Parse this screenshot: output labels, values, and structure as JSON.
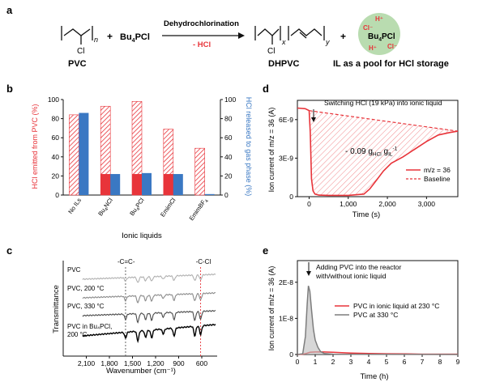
{
  "scheme": {
    "panel_label": "a",
    "pvc_cl": "Cl",
    "pvc_n": "n",
    "plus1": "+",
    "reagent_main": "Bu",
    "reagent_sub": "4",
    "reagent_end": "PCl",
    "arrow_top": "Dehydrochlorination",
    "arrow_bottom": "- HCl",
    "dhpvc_cl": "Cl",
    "dhpvc_x": "x",
    "dhpvc_y": "y",
    "plus2": "+",
    "pool_h_top": "H⁺",
    "pool_cl_left": "Cl⁻",
    "pool_main": "Bu",
    "pool_sub": "4",
    "pool_end": "PCl",
    "pool_h_bottom": "H⁺",
    "pool_cl_right": "Cl⁻",
    "pool_color": "#b9dcb0",
    "label_pvc": "PVC",
    "label_dhpvc": "DHPVC",
    "label_pool": "IL as a pool for HCl storage"
  },
  "chart_data": [
    {
      "panel": "b",
      "type": "bar",
      "xlabel": "Ionic liquids",
      "ylabel_left": "HCl emitted from PVC (%)",
      "ylabel_right": "HCl released to gas phase (%)",
      "ylim": [
        0,
        100
      ],
      "yticks": [
        0,
        20,
        40,
        60,
        80,
        100
      ],
      "categories": [
        "No ILs",
        "Bu4NCl",
        "Bu4PCl",
        "EmimCl",
        "EmimBF4"
      ],
      "category_labels": [
        {
          "main": "No ILs",
          "sub": "",
          "end": ""
        },
        {
          "main": "Bu",
          "sub": "4",
          "end": "NCl"
        },
        {
          "main": "Bu",
          "sub": "4",
          "end": "PCl"
        },
        {
          "main": "EmimCl",
          "sub": "",
          "end": ""
        },
        {
          "main": "EmimBF",
          "sub": "4",
          "end": ""
        }
      ],
      "series": [
        {
          "values": [
            84,
            93,
            98,
            69,
            49
          ],
          "color": "#e8343a",
          "pattern": "hatched"
        },
        {
          "values": [
            0,
            22,
            22,
            22,
            0
          ],
          "color": "#e8343a",
          "pattern": "solid"
        },
        {
          "values": [
            86,
            22,
            23,
            22,
            1
          ],
          "color": "#3a78c3",
          "pattern": "solid"
        }
      ]
    },
    {
      "panel": "c",
      "type": "line",
      "xlabel": "Wavenumber (cm⁻¹)",
      "ylabel": "Transmittance",
      "xlim": [
        2400,
        400
      ],
      "xticks": [
        2100,
        1800,
        1500,
        1200,
        900,
        600
      ],
      "xtick_labels": [
        "2,100",
        "1,800",
        "1,500",
        "1,200",
        "900",
        "600"
      ],
      "markers": [
        {
          "label": "-C=C-",
          "x": 1590,
          "color": "#555555"
        },
        {
          "label": "-C-Cl",
          "x": 615,
          "color": "#e8343a"
        }
      ],
      "series": [
        {
          "label": "PVC",
          "color": "#b0b0b0"
        },
        {
          "label": "PVC, 200 °C",
          "color": "#8a8a8a"
        },
        {
          "label": "PVC, 330 °C",
          "color": "#4a4a4a"
        },
        {
          "label": "PVC in Bu₄PCl,",
          "label2": "200 °C",
          "color": "#000000"
        }
      ]
    },
    {
      "panel": "d",
      "type": "line",
      "xlabel": "Time (s)",
      "ylabel": "Ion current of m/z = 36 (A)",
      "xlim": [
        -300,
        3800
      ],
      "xticks": [
        0,
        1000,
        2000,
        3000
      ],
      "xtick_labels": [
        "0",
        "1,000",
        "2,000",
        "3,000"
      ],
      "ylim": [
        0,
        7.5e-09
      ],
      "yticks": [
        0,
        3e-09,
        6e-09
      ],
      "ytick_labels": [
        "0",
        "3E-9",
        "6E-9"
      ],
      "annotation": "Switching HCl (19 kPa) into ionic liquid",
      "area_label_main": "- 0.09 g",
      "area_label_sub1": "HCl",
      "area_label_mid": " g",
      "area_label_sub2": "IL",
      "area_label_sup": "-1",
      "series": [
        {
          "name": "m/z = 36",
          "color": "#e8343a",
          "style": "solid",
          "x": [
            -300,
            -100,
            0,
            30,
            60,
            100,
            150,
            250,
            500,
            1000,
            1400,
            1550,
            1700,
            1900,
            2100,
            2400,
            2700,
            3000,
            3300,
            3600,
            3800
          ],
          "y": [
            6.9e-09,
            6.85e-09,
            6.7e-09,
            5e-09,
            1.4e-09,
            4.5e-10,
            2e-10,
            1.2e-10,
            1e-10,
            1e-10,
            2e-10,
            6e-10,
            1.2e-09,
            2e-09,
            2.6e-09,
            3.1e-09,
            3.7e-09,
            4.3e-09,
            4.8e-09,
            5e-09,
            5.1e-09
          ]
        },
        {
          "name": "Baseline",
          "color": "#e8343a",
          "style": "dashed",
          "x": [
            0,
            3800
          ],
          "y": [
            6.7e-09,
            5.1e-09
          ]
        }
      ]
    },
    {
      "panel": "e",
      "type": "line",
      "xlabel": "Time (h)",
      "ylabel": "Ion current of m/z = 36 (A)",
      "xlim": [
        0,
        9
      ],
      "xticks": [
        0,
        1,
        2,
        3,
        4,
        5,
        6,
        7,
        8,
        9
      ],
      "ylim": [
        0,
        2.6e-08
      ],
      "yticks": [
        0,
        1e-08,
        2e-08
      ],
      "ytick_labels": [
        "0",
        "1E-8",
        "2E-8"
      ],
      "annotation_line1": "Adding PVC into the reactor",
      "annotation_line2": "with/without ionic liquid",
      "series": [
        {
          "name": "PVC in ionic liquid at 230 °C",
          "color": "#e8343a",
          "x": [
            0,
            0.3,
            0.5,
            0.7,
            1.0,
            1.5,
            2.0,
            3.0,
            4.0,
            5.0,
            6.0,
            7.0,
            9.0
          ],
          "y": [
            0,
            1e-10,
            3e-10,
            6e-10,
            7e-10,
            7e-10,
            6e-10,
            4e-10,
            3e-10,
            2e-10,
            1.5e-10,
            1e-10,
            1e-10
          ]
        },
        {
          "name": "PVC at 330 °C",
          "color": "#7d7d7d",
          "x": [
            0,
            0.3,
            0.45,
            0.55,
            0.62,
            0.7,
            0.8,
            0.9,
            1.0,
            1.15,
            1.3,
            1.5,
            2.0,
            3.0,
            9.0
          ],
          "y": [
            0,
            2e-10,
            5e-09,
            1.4e-08,
            1.9e-08,
            1.75e-08,
            1.2e-08,
            7e-09,
            4e-09,
            2e-09,
            8e-10,
            3e-10,
            1e-10,
            5e-11,
            0
          ]
        }
      ]
    }
  ]
}
